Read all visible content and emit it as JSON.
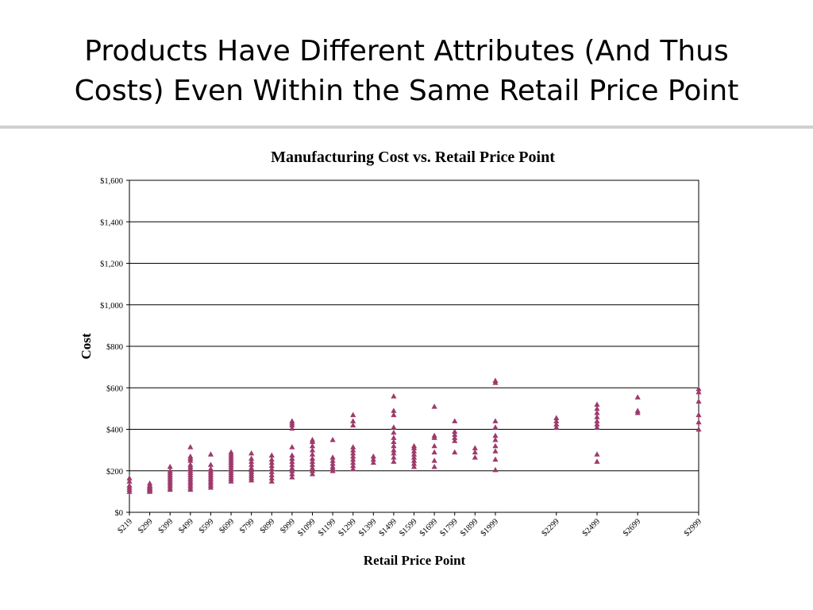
{
  "slide": {
    "title_line1": "Products Have Different Attributes (And Thus",
    "title_line2": "Costs) Even Within the Same Retail Price Point"
  },
  "chart_data": {
    "type": "scatter",
    "title": "Manufacturing Cost vs. Retail Price Point",
    "xlabel": "Retail Price Point",
    "ylabel": "Cost",
    "x_tick_labels": [
      "$219",
      "$299",
      "$399",
      "$499",
      "$599",
      "$699",
      "$799",
      "$899",
      "$999",
      "$1099",
      "$1199",
      "$1299",
      "$1399",
      "$1499",
      "$1599",
      "$1699",
      "$1799",
      "$1899",
      "$1999",
      "$2299",
      "$2499",
      "$2699",
      "$2999"
    ],
    "y_tick_labels": [
      "$0",
      "$200",
      "$400",
      "$600",
      "$800",
      "$1,000",
      "$1,200",
      "$1,400",
      "$1,600"
    ],
    "ylim": [
      0,
      1600
    ],
    "y_step": 200,
    "grid": "horizontal",
    "marker": "triangle",
    "marker_color": "#9e3a6b",
    "points": [
      {
        "x": 219,
        "y": [
          100,
          110,
          120,
          130,
          150,
          165
        ]
      },
      {
        "x": 299,
        "y": [
          100,
          105,
          110,
          115,
          120,
          125,
          130,
          140
        ]
      },
      {
        "x": 399,
        "y": [
          110,
          120,
          130,
          140,
          150,
          160,
          170,
          180,
          190,
          200,
          220
        ]
      },
      {
        "x": 499,
        "y": [
          110,
          120,
          130,
          140,
          150,
          160,
          170,
          180,
          190,
          200,
          210,
          220,
          230,
          250,
          260,
          270,
          315
        ]
      },
      {
        "x": 599,
        "y": [
          120,
          130,
          140,
          150,
          160,
          170,
          180,
          190,
          200,
          210,
          230,
          280
        ]
      },
      {
        "x": 699,
        "y": [
          150,
          160,
          170,
          180,
          190,
          200,
          210,
          220,
          230,
          240,
          250,
          260,
          270,
          280,
          290
        ]
      },
      {
        "x": 799,
        "y": [
          155,
          165,
          175,
          185,
          195,
          205,
          215,
          230,
          245,
          260,
          285
        ]
      },
      {
        "x": 899,
        "y": [
          150,
          165,
          180,
          195,
          210,
          225,
          240,
          255,
          275
        ]
      },
      {
        "x": 999,
        "y": [
          170,
          185,
          200,
          215,
          230,
          245,
          260,
          275,
          315,
          405,
          420,
          430,
          440
        ]
      },
      {
        "x": 1099,
        "y": [
          185,
          200,
          215,
          230,
          245,
          260,
          280,
          300,
          320,
          340,
          350
        ]
      },
      {
        "x": 1199,
        "y": [
          200,
          210,
          220,
          235,
          250,
          265,
          350
        ]
      },
      {
        "x": 1299,
        "y": [
          210,
          225,
          240,
          255,
          270,
          285,
          300,
          315,
          420,
          440,
          470
        ]
      },
      {
        "x": 1399,
        "y": [
          240,
          255,
          270
        ]
      },
      {
        "x": 1499,
        "y": [
          245,
          265,
          285,
          300,
          320,
          340,
          360,
          385,
          410,
          470,
          490,
          560
        ]
      },
      {
        "x": 1599,
        "y": [
          220,
          235,
          250,
          265,
          280,
          295,
          310,
          320
        ]
      },
      {
        "x": 1699,
        "y": [
          220,
          250,
          290,
          320,
          360,
          370,
          510
        ]
      },
      {
        "x": 1799,
        "y": [
          290,
          345,
          360,
          375,
          390,
          440
        ]
      },
      {
        "x": 1899,
        "y": [
          265,
          290,
          310
        ]
      },
      {
        "x": 1999,
        "y": [
          205,
          255,
          295,
          320,
          350,
          370,
          410,
          440,
          625,
          635
        ]
      },
      {
        "x": 2299,
        "y": [
          410,
          425,
          440,
          455
        ]
      },
      {
        "x": 2499,
        "y": [
          245,
          280,
          410,
          425,
          440,
          460,
          480,
          500,
          520
        ]
      },
      {
        "x": 2699,
        "y": [
          480,
          490,
          555
        ]
      },
      {
        "x": 2999,
        "y": [
          400,
          435,
          470,
          535,
          580,
          595
        ]
      }
    ]
  }
}
